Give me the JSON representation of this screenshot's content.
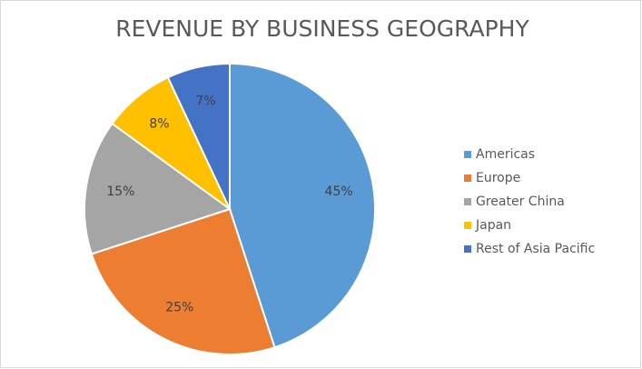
{
  "chart_data": {
    "type": "pie",
    "title": "REVENUE BY BUSINESS GEOGRAPHY",
    "categories": [
      "Americas",
      "Europe",
      "Greater China",
      "Japan",
      "Rest of Asia Pacific"
    ],
    "values": [
      45,
      25,
      15,
      8,
      7
    ],
    "value_labels": [
      "45%",
      "25%",
      "15%",
      "8%",
      "7%"
    ],
    "colors": [
      "#5b9bd5",
      "#ed7d31",
      "#a5a5a5",
      "#ffc000",
      "#4472c4"
    ],
    "legend": "right"
  }
}
